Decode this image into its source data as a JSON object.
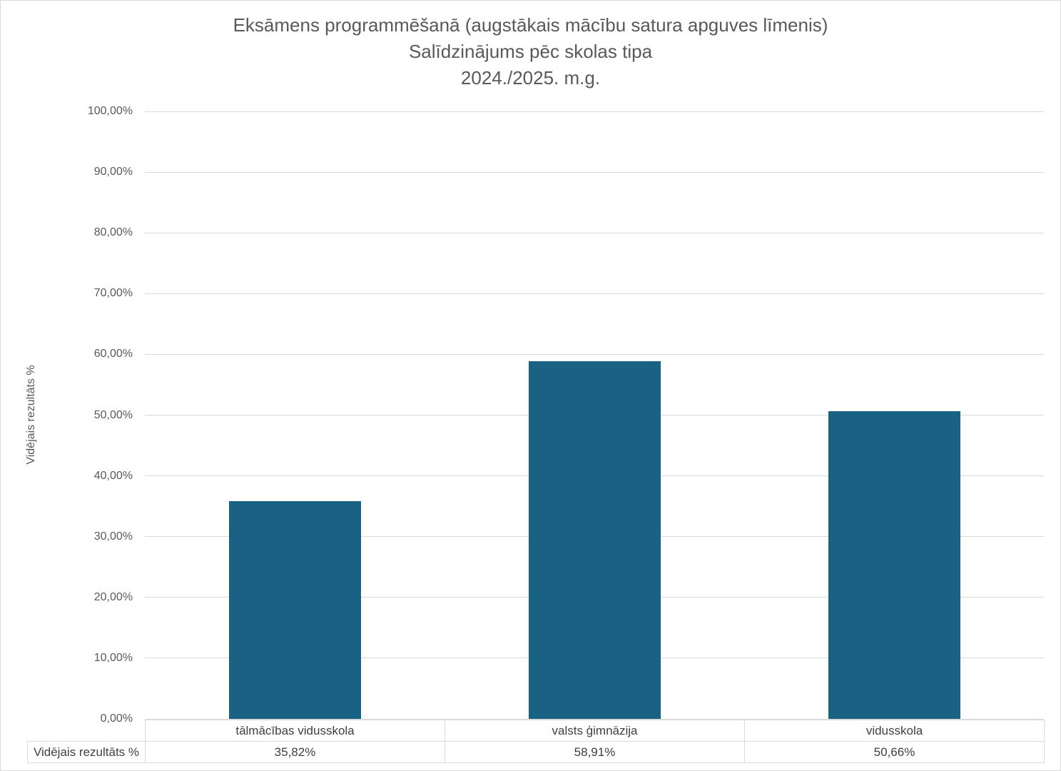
{
  "title": {
    "line1": "Eksāmens programmēšanā (augstākais mācību satura apguves līmenis)",
    "line2": "Salīdzinājums pēc skolas tipa",
    "line3": "2024./2025. m.g."
  },
  "chart_data": {
    "type": "bar",
    "title": "Eksāmens programmēšanā (augstākais mācību satura apguves līmenis) — Salīdzinājums pēc skolas tipa — 2024./2025. m.g.",
    "categories": [
      "tālmācības vidusskola",
      "valsts ģimnāzija",
      "vidusskola"
    ],
    "series": [
      {
        "name": "Vidējais rezultāts %",
        "values": [
          35.82,
          58.91,
          50.66
        ],
        "value_labels": [
          "35,82%",
          "58,91%",
          "50,66%"
        ]
      }
    ],
    "xlabel": "",
    "ylabel": "Vidējais rezultāts %",
    "ylim": [
      0,
      100
    ],
    "yticks": [
      {
        "value": 0,
        "label": "0,00%"
      },
      {
        "value": 10,
        "label": "10,00%"
      },
      {
        "value": 20,
        "label": "20,00%"
      },
      {
        "value": 30,
        "label": "30,00%"
      },
      {
        "value": 40,
        "label": "40,00%"
      },
      {
        "value": 50,
        "label": "50,00%"
      },
      {
        "value": 60,
        "label": "60,00%"
      },
      {
        "value": 70,
        "label": "70,00%"
      },
      {
        "value": 80,
        "label": "80,00%"
      },
      {
        "value": 90,
        "label": "90,00%"
      },
      {
        "value": 100,
        "label": "100,00%"
      }
    ],
    "grid": true,
    "legend_position": "none",
    "data_table_below_axis": true,
    "data_table_row_header": "Vidējais rezultāts %",
    "colors": {
      "bar": "#1A6284",
      "gridline": "#D9D9D9",
      "axis_text": "#595959",
      "title_text": "#595959",
      "table_text": "#404040",
      "table_border": "#D9D9D9",
      "background": "#FFFFFF"
    }
  }
}
